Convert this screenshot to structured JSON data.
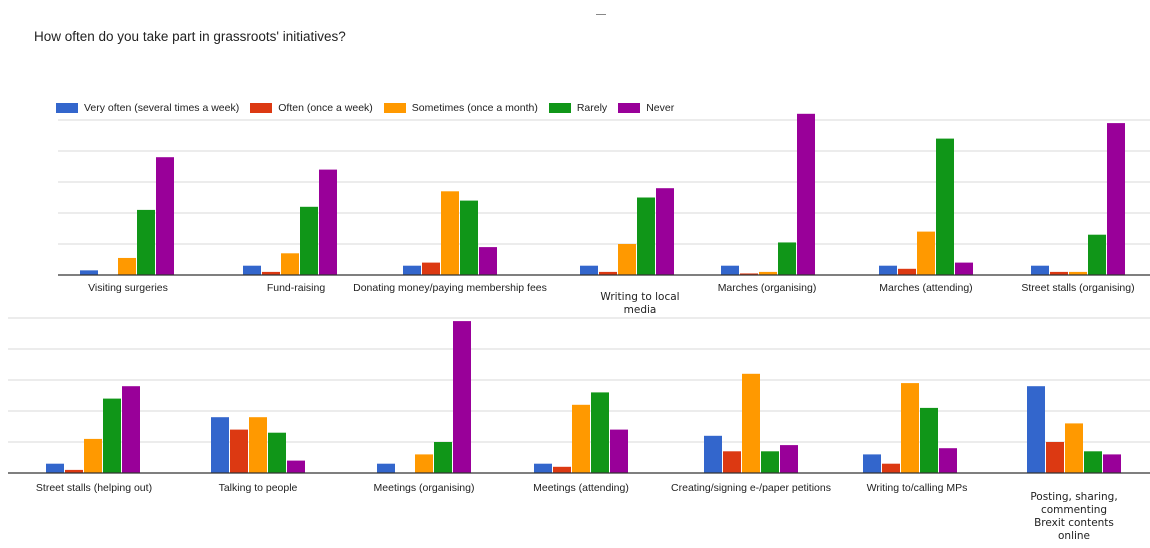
{
  "title": "How often do you take part in grassroots' initiatives?",
  "colors": {
    "very_often": "#3366cc",
    "often": "#dc3912",
    "sometimes": "#ff9900",
    "rarely": "#109618",
    "never": "#990099",
    "grid": "#d9d9d9",
    "axis": "#333333"
  },
  "chart_data": {
    "type": "bar",
    "title": "How often do you take part in grassroots' initiatives?",
    "xlabel": "",
    "ylabel": "",
    "grid": true,
    "legend_position": "top-left",
    "series": [
      {
        "name": "Very often (several times a week)",
        "color": "#3366cc"
      },
      {
        "name": "Often (once a week)",
        "color": "#dc3912"
      },
      {
        "name": "Sometimes (once a month)",
        "color": "#ff9900"
      },
      {
        "name": "Rarely",
        "color": "#109618"
      },
      {
        "name": "Never",
        "color": "#990099"
      }
    ],
    "panels": [
      {
        "ylim": [
          0,
          50
        ],
        "categories": [
          {
            "label": [
              "Visiting surgeries"
            ],
            "values": [
              1.5,
              0,
              5.5,
              21,
              38
            ]
          },
          {
            "label": [
              "Fund-raising"
            ],
            "values": [
              3,
              1,
              7,
              22,
              34
            ]
          },
          {
            "label": [
              "Donating money/paying membership fees"
            ],
            "values": [
              3,
              4,
              27,
              24,
              9
            ]
          },
          {
            "label": [
              "Writing to local",
              "media"
            ],
            "values": [
              3,
              1,
              10,
              25,
              28
            ]
          },
          {
            "label": [
              "Marches (organising)"
            ],
            "values": [
              3,
              0.5,
              1,
              10.5,
              52
            ]
          },
          {
            "label": [
              "Marches (attending)"
            ],
            "values": [
              3,
              2,
              14,
              44,
              4
            ]
          },
          {
            "label": [
              "Street stalls (organising)"
            ],
            "values": [
              3,
              1,
              1,
              13,
              49
            ]
          }
        ]
      },
      {
        "ylim": [
          0,
          50
        ],
        "categories": [
          {
            "label": [
              "Street stalls (helping out)"
            ],
            "values": [
              3,
              1,
              11,
              24,
              28
            ]
          },
          {
            "label": [
              "Talking to people"
            ],
            "values": [
              18,
              14,
              18,
              13,
              4
            ]
          },
          {
            "label": [
              "Meetings (organising)"
            ],
            "values": [
              3,
              0,
              6,
              10,
              49
            ]
          },
          {
            "label": [
              "Meetings (attending)"
            ],
            "values": [
              3,
              2,
              22,
              26,
              14
            ]
          },
          {
            "label": [
              "Creating/signing e-/paper petitions"
            ],
            "values": [
              12,
              7,
              32,
              7,
              9
            ]
          },
          {
            "label": [
              "Writing to/calling MPs"
            ],
            "values": [
              6,
              3,
              29,
              21,
              8
            ]
          },
          {
            "label": [
              "Posting, sharing,",
              "commenting",
              "Brexit contents",
              "online"
            ],
            "values": [
              28,
              10,
              16,
              7,
              6
            ]
          }
        ]
      }
    ]
  }
}
